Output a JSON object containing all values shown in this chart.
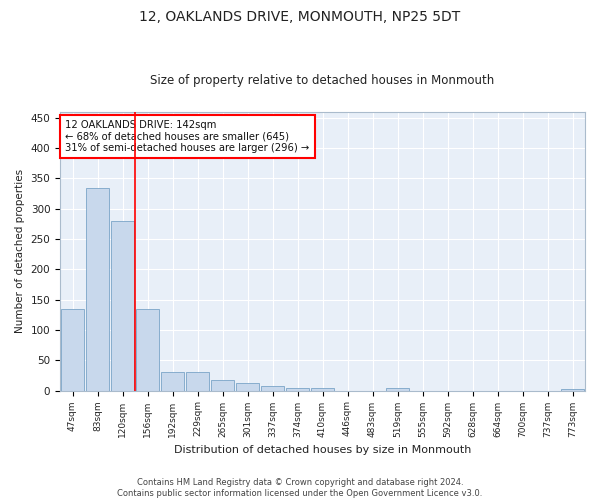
{
  "title": "12, OAKLANDS DRIVE, MONMOUTH, NP25 5DT",
  "subtitle": "Size of property relative to detached houses in Monmouth",
  "xlabel": "Distribution of detached houses by size in Monmouth",
  "ylabel": "Number of detached properties",
  "bar_color": "#c8d8ec",
  "bar_edge_color": "#7aa4c8",
  "background_color": "#e8eff8",
  "grid_color": "#ffffff",
  "categories": [
    "47sqm",
    "83sqm",
    "120sqm",
    "156sqm",
    "192sqm",
    "229sqm",
    "265sqm",
    "301sqm",
    "337sqm",
    "374sqm",
    "410sqm",
    "446sqm",
    "483sqm",
    "519sqm",
    "555sqm",
    "592sqm",
    "628sqm",
    "664sqm",
    "700sqm",
    "737sqm",
    "773sqm"
  ],
  "values": [
    135,
    335,
    280,
    135,
    30,
    30,
    17,
    12,
    7,
    5,
    4,
    0,
    0,
    4,
    0,
    0,
    0,
    0,
    0,
    0,
    3
  ],
  "vline_x": 2.5,
  "vline_color": "red",
  "ylim": [
    0,
    460
  ],
  "yticks": [
    0,
    50,
    100,
    150,
    200,
    250,
    300,
    350,
    400,
    450
  ],
  "annotation_box_text": "12 OAKLANDS DRIVE: 142sqm\n← 68% of detached houses are smaller (645)\n31% of semi-detached houses are larger (296) →",
  "footer_line1": "Contains HM Land Registry data © Crown copyright and database right 2024.",
  "footer_line2": "Contains public sector information licensed under the Open Government Licence v3.0."
}
